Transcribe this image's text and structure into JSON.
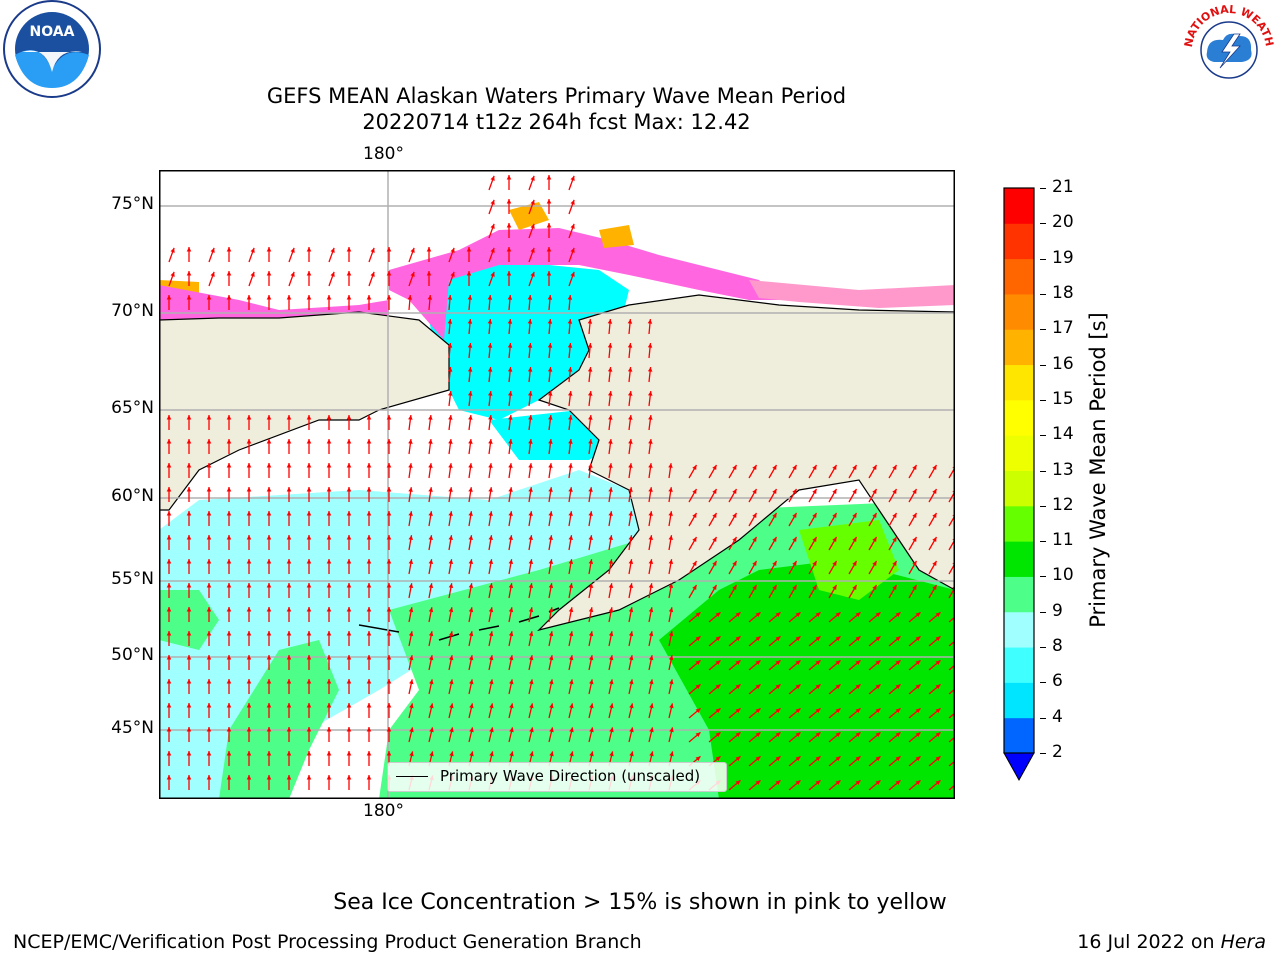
{
  "title": {
    "line1": "GEFS MEAN Alaskan Waters Primary Wave Mean Period",
    "line2": "20220714 t12z 264h fcst   Max: 12.42"
  },
  "map": {
    "lon_label_top": "180°",
    "lon_label_bottom": "180°",
    "lat_labels": [
      "75°N",
      "70°N",
      "65°N",
      "60°N",
      "55°N",
      "50°N",
      "45°N"
    ],
    "legend_label": "Primary Wave Direction (unscaled)"
  },
  "colorbar": {
    "label": "Primary Wave Mean Period [s]",
    "ticks": [
      "2",
      "4",
      "6",
      "8",
      "9",
      "10",
      "11",
      "12",
      "13",
      "14",
      "15",
      "16",
      "17",
      "18",
      "19",
      "20",
      "21"
    ],
    "colors": [
      "#0066ff",
      "#00e5ff",
      "#40ffff",
      "#a0ffff",
      "#4dff88",
      "#00e600",
      "#66ff00",
      "#ccff00",
      "#eeff00",
      "#ffff00",
      "#ffe600",
      "#ffb300",
      "#ff8c00",
      "#ff6600",
      "#ff3300",
      "#ff0000"
    ],
    "under_color": "#0000ff"
  },
  "logos": {
    "noaa_text": "NOAA",
    "nws_text": "NATIONAL WEATHER SERVICE"
  },
  "footer": {
    "note": "Sea Ice Concentration > 15% is shown in pink to yellow",
    "left": "NCEP/EMC/Verification Post Processing Product Generation Branch",
    "date": "16 Jul 2022 on ",
    "machine": "Hera"
  }
}
